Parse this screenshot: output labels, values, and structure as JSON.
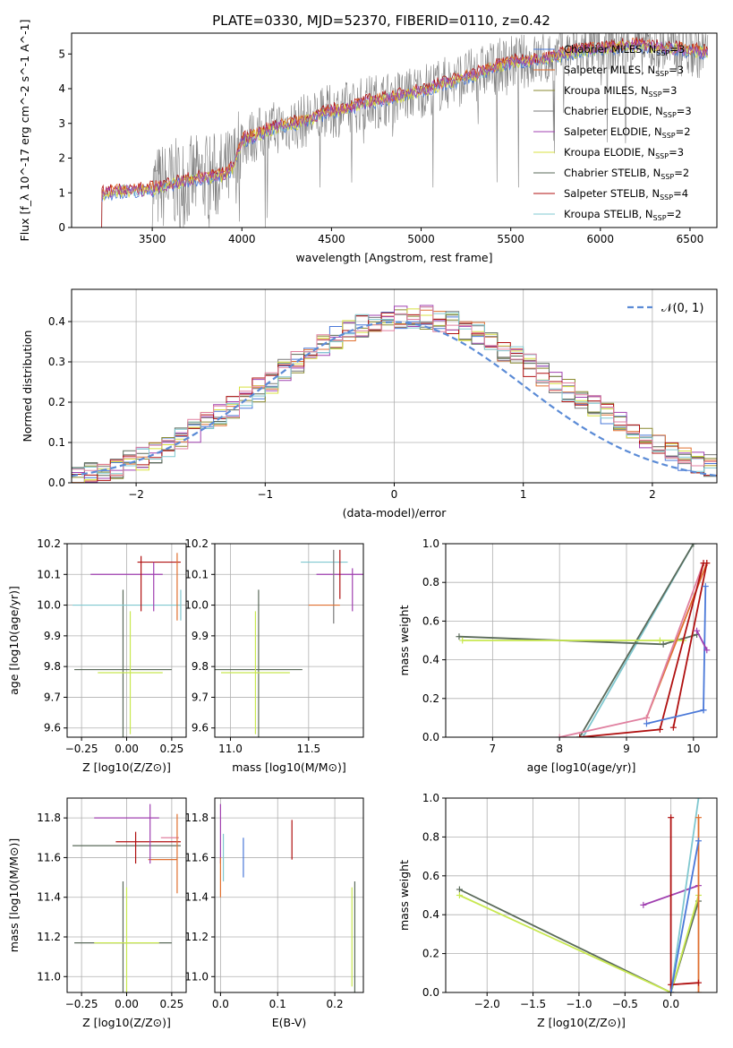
{
  "figure": {
    "title": "PLATE=0330, MJD=52370, FIBERID=0110, z=0.42"
  },
  "colors": {
    "chabrier_miles": "#4a78d8",
    "salpeter_miles": "#e07030",
    "kroupa_miles": "#8a8a30",
    "chabrier_elodie": "#7a7a7a",
    "salpeter_elodie": "#a040b0",
    "kroupa_elodie": "#d8e040",
    "chabrier_stelib": "#5a6a5a",
    "salpeter_stelib": "#b01010",
    "kroupa_stelib": "#80c8d0",
    "pink": "#e080a0",
    "lime": "#c8e850",
    "data_gray": "#808080",
    "normal_curve": "#5b8bd6"
  },
  "chart_data": [
    {
      "type": "line",
      "title": "PLATE=0330, MJD=52370, FIBERID=0110, z=0.42",
      "xlabel": "wavelength [Angstrom, rest frame]",
      "ylabel": "Flux [f_λ 10^-17 erg cm^-2 s^-1 A^-1]",
      "xlim": [
        3050,
        6650
      ],
      "ylim": [
        0,
        5.6
      ],
      "xticks": [
        3500,
        4000,
        4500,
        5000,
        5500,
        6000,
        6500
      ],
      "yticks": [
        0,
        1,
        2,
        3,
        4,
        5
      ],
      "legend_position": "top-right",
      "legend": [
        {
          "text": "Chabrier MILES, N",
          "sub": "SSP",
          "suffix": "=3",
          "color": "#4a78d8"
        },
        {
          "text": "Salpeter MILES, N",
          "sub": "SSP",
          "suffix": "=3",
          "color": "#e07030"
        },
        {
          "text": "Kroupa MILES, N",
          "sub": "SSP",
          "suffix": "=3",
          "color": "#8a8a30"
        },
        {
          "text": "Chabrier ELODIE, N",
          "sub": "SSP",
          "suffix": "=3",
          "color": "#7a7a7a"
        },
        {
          "text": "Salpeter ELODIE, N",
          "sub": "SSP",
          "suffix": "=2",
          "color": "#a040b0"
        },
        {
          "text": "Kroupa ELODIE, N",
          "sub": "SSP",
          "suffix": "=3",
          "color": "#d8e040"
        },
        {
          "text": "Chabrier STELIB, N",
          "sub": "SSP",
          "suffix": "=2",
          "color": "#5a6a5a"
        },
        {
          "text": "Salpeter STELIB, N",
          "sub": "SSP",
          "suffix": "=4",
          "color": "#b01010"
        },
        {
          "text": "Kroupa STELIB, N",
          "sub": "SSP",
          "suffix": "=2",
          "color": "#80c8d0"
        }
      ],
      "model_curve": {
        "x": [
          3220,
          3300,
          3400,
          3500,
          3600,
          3700,
          3800,
          3900,
          3950,
          4000,
          4100,
          4200,
          4300,
          4400,
          4500,
          4600,
          4700,
          4800,
          4900,
          5000,
          5100,
          5200,
          5300,
          5400,
          5500,
          5600,
          5700,
          5800,
          5900,
          6000,
          6100,
          6200,
          6300,
          6400,
          6500,
          6600
        ],
        "y": [
          0.95,
          1.05,
          1.05,
          1.1,
          1.25,
          1.35,
          1.45,
          1.5,
          1.7,
          2.5,
          2.7,
          2.9,
          3.0,
          3.15,
          3.35,
          3.45,
          3.6,
          3.7,
          3.8,
          3.95,
          4.1,
          4.25,
          4.4,
          4.6,
          4.75,
          4.8,
          4.85,
          5.0,
          5.1,
          5.15,
          5.2,
          5.25,
          5.2,
          5.15,
          5.1,
          5.05
        ]
      },
      "data_range": [
        3500,
        6600
      ]
    },
    {
      "type": "bar",
      "xlabel": "(data-model)/error",
      "ylabel": "Normed distribution",
      "xlim": [
        -2.5,
        2.5
      ],
      "ylim": [
        0,
        0.48
      ],
      "xticks": [
        -2,
        -1,
        0,
        1,
        2
      ],
      "yticks": [
        0.0,
        0.1,
        0.2,
        0.3,
        0.4
      ],
      "legend_position": "top-right",
      "legend": [
        {
          "text": "𝒩(0, 1)",
          "color": "#5b8bd6",
          "style": "dashed"
        }
      ],
      "histogram_bin_width": 0.1,
      "series_envelope": [
        0.02,
        0.025,
        0.03,
        0.04,
        0.05,
        0.06,
        0.075,
        0.09,
        0.11,
        0.13,
        0.15,
        0.17,
        0.19,
        0.21,
        0.23,
        0.25,
        0.28,
        0.3,
        0.32,
        0.34,
        0.36,
        0.38,
        0.39,
        0.4,
        0.4,
        0.41,
        0.41,
        0.41,
        0.4,
        0.4,
        0.38,
        0.37,
        0.35,
        0.33,
        0.31,
        0.29,
        0.27,
        0.25,
        0.23,
        0.21,
        0.19,
        0.17,
        0.15,
        0.13,
        0.11,
        0.09,
        0.075,
        0.06,
        0.05,
        0.04
      ]
    },
    {
      "type": "scatter",
      "xlabel": "Z [log10(Z/Z⊙)]",
      "ylabel": "age [log10(age/yr)]",
      "xlim": [
        -0.33,
        0.33
      ],
      "ylim": [
        9.57,
        10.2
      ],
      "xticks": [
        -0.25,
        0.0,
        0.25
      ],
      "yticks": [
        9.6,
        9.7,
        9.8,
        9.9,
        10.0,
        10.1,
        10.2
      ]
    },
    {
      "type": "scatter",
      "xlabel": "mass [log10(M/M⊙)]",
      "ylabel": "",
      "xlim": [
        10.9,
        11.85
      ],
      "ylim": [
        9.57,
        10.2
      ],
      "xticks": [
        11.0,
        11.5
      ],
      "yticks": [
        9.6,
        9.7,
        9.8,
        9.9,
        10.0,
        10.1,
        10.2
      ]
    },
    {
      "type": "line",
      "xlabel": "age [log10(age/yr)]",
      "ylabel": "mass weight",
      "xlim": [
        6.3,
        10.35
      ],
      "ylim": [
        0,
        1.0
      ],
      "xticks": [
        7,
        8,
        9,
        10
      ],
      "yticks": [
        0.0,
        0.2,
        0.4,
        0.6,
        0.8,
        1.0
      ]
    },
    {
      "type": "scatter",
      "xlabel": "Z [log10(Z/Z⊙)]",
      "ylabel": "mass [log10(M/M⊙)]",
      "xlim": [
        -0.33,
        0.33
      ],
      "ylim": [
        10.92,
        11.9
      ],
      "xticks": [
        -0.25,
        0.0,
        0.25
      ],
      "yticks": [
        11.0,
        11.2,
        11.4,
        11.6,
        11.8
      ]
    },
    {
      "type": "scatter",
      "xlabel": "E(B-V)",
      "ylabel": "",
      "xlim": [
        -0.01,
        0.25
      ],
      "ylim": [
        10.92,
        11.9
      ],
      "xticks": [
        0.0,
        0.1,
        0.2
      ],
      "yticks": [
        11.0,
        11.2,
        11.4,
        11.6,
        11.8
      ]
    },
    {
      "type": "line",
      "xlabel": "Z [log10(Z/Z⊙)]",
      "ylabel": "mass weight",
      "xlim": [
        -2.45,
        0.5
      ],
      "ylim": [
        0,
        1.0
      ],
      "xticks": [
        -2.0,
        -1.5,
        -1.0,
        -0.5,
        0.0
      ],
      "yticks": [
        0.0,
        0.2,
        0.4,
        0.6,
        0.8,
        1.0
      ]
    }
  ],
  "panel_titles": {
    "flux_title": "PLATE=0330, MJD=52370, FIBERID=0110, z=0.42"
  }
}
